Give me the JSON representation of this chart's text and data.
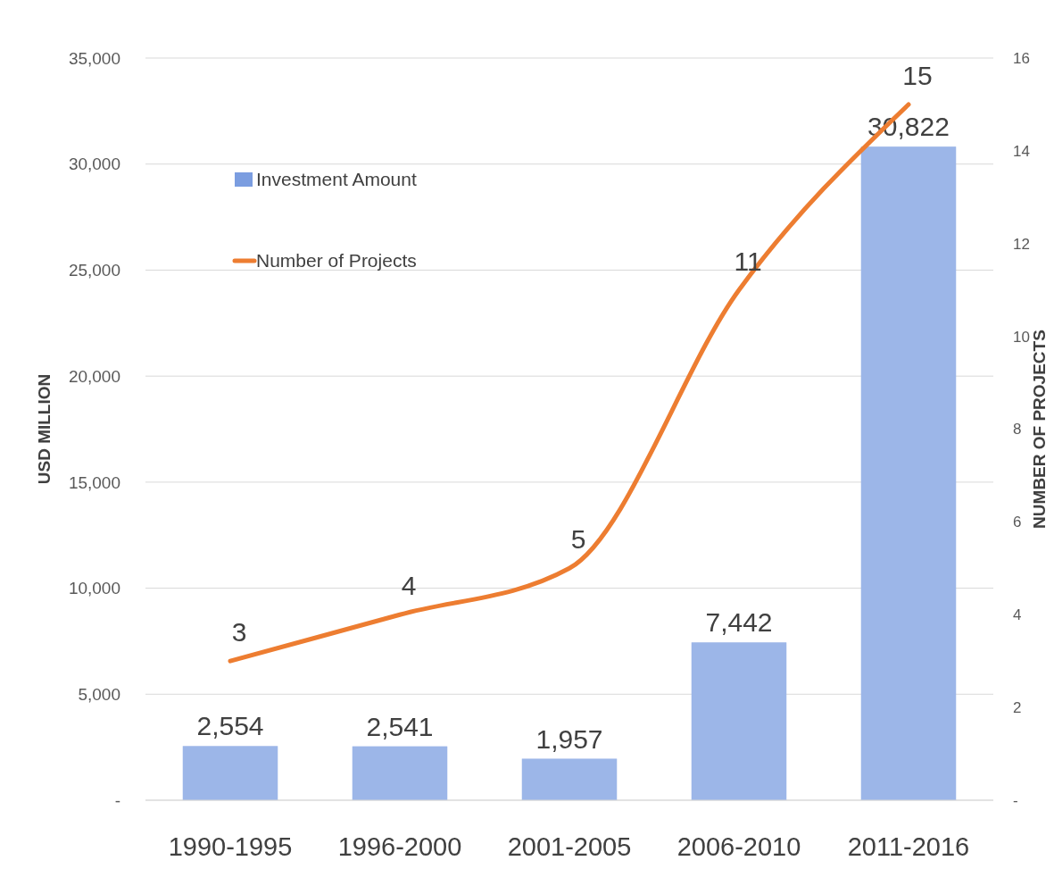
{
  "chart_data": {
    "type": "bar",
    "categories": [
      "1990-1995",
      "1996-2000",
      "2001-2005",
      "2006-2010",
      "2011-2016"
    ],
    "series": [
      {
        "name": "Investment Amount",
        "color": "#7b9de0",
        "values": [
          2554,
          2541,
          1957,
          7442,
          30822
        ],
        "value_labels": [
          "2,554",
          "2,541",
          "1,957",
          "7,442",
          "30,822"
        ]
      },
      {
        "name": "Number of Projects",
        "type": "line",
        "axis": "y2",
        "color": "#ed7d31",
        "values": [
          3,
          4,
          5,
          11,
          15
        ]
      }
    ],
    "ylabel": "USD MILLION",
    "y2label": "NUMBER OF PROJECTS",
    "ylim": [
      0,
      35000
    ],
    "yticks": [
      {
        "value": 0,
        "label": "-"
      },
      {
        "value": 5000,
        "label": "5,000"
      },
      {
        "value": 10000,
        "label": "10,000"
      },
      {
        "value": 15000,
        "label": "15,000"
      },
      {
        "value": 20000,
        "label": "20,000"
      },
      {
        "value": 25000,
        "label": "25,000"
      },
      {
        "value": 30000,
        "label": "30,000"
      },
      {
        "value": 35000,
        "label": "35,000"
      }
    ],
    "y2lim": [
      0,
      16
    ],
    "y2ticks": [
      {
        "value": 0,
        "label": "-"
      },
      2,
      4,
      6,
      8,
      10,
      12,
      14,
      16
    ],
    "grid": "y",
    "legend": "top left",
    "data_labels": true,
    "line_style": "solid",
    "marker": "none"
  }
}
